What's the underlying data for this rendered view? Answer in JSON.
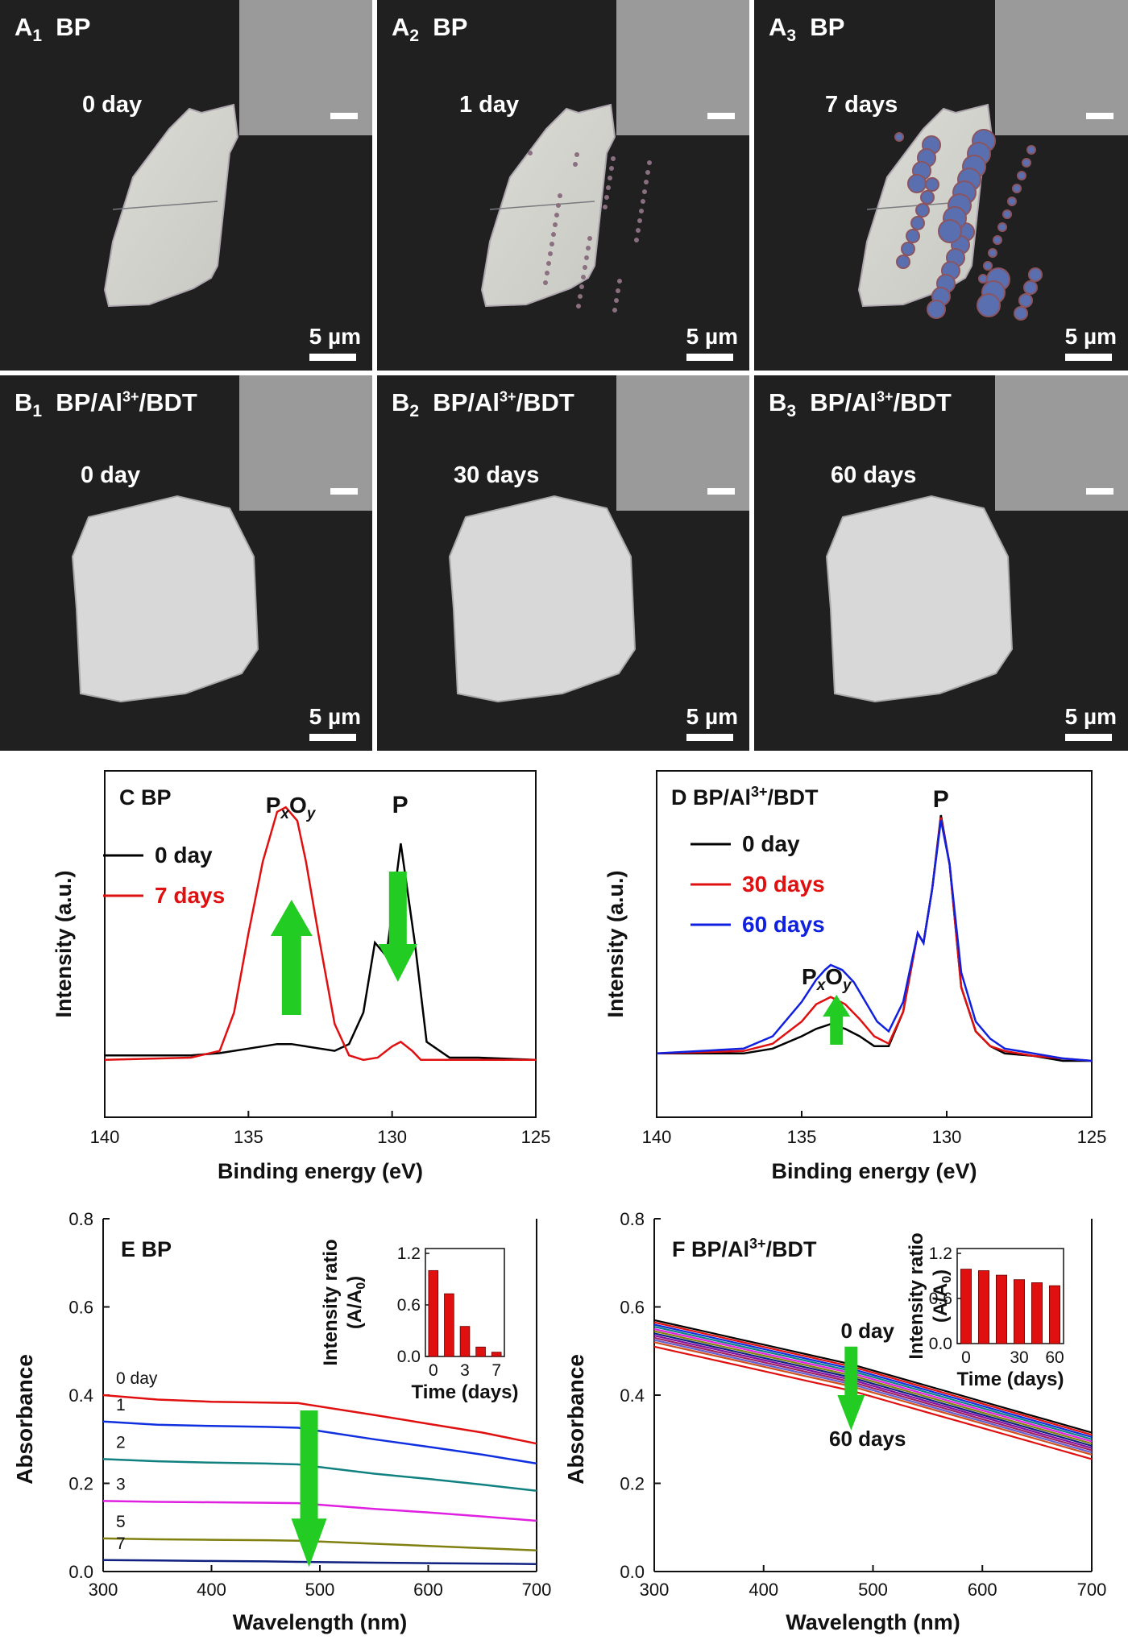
{
  "panels": [
    {
      "id": "A1",
      "letter": "A",
      "sub": "1",
      "sample": "BP",
      "time": "0 day",
      "scale": "5 µm"
    },
    {
      "id": "A2",
      "letter": "A",
      "sub": "2",
      "sample": "BP",
      "time": "1 day",
      "scale": "5 µm"
    },
    {
      "id": "A3",
      "letter": "A",
      "sub": "3",
      "sample": "BP",
      "time": "7 days",
      "scale": "5 µm"
    },
    {
      "id": "B1",
      "letter": "B",
      "sub": "1",
      "sample": "BP/Al",
      "sample_sup": "3+",
      "sample_tail": "/BDT",
      "time": "0 day",
      "scale": "5 µm"
    },
    {
      "id": "B2",
      "letter": "B",
      "sub": "2",
      "sample": "BP/Al",
      "sample_sup": "3+",
      "sample_tail": "/BDT",
      "time": "30 days",
      "scale": "5 µm"
    },
    {
      "id": "B3",
      "letter": "B",
      "sub": "3",
      "sample": "BP/Al",
      "sample_sup": "3+",
      "sample_tail": "/BDT",
      "time": "60 days",
      "scale": "5 µm"
    }
  ],
  "chart_data": [
    {
      "id": "C",
      "type": "line",
      "title": "BP",
      "xlabel": "Binding energy (eV)",
      "ylabel": "Intensity (a.u.)",
      "xlim": [
        140,
        125
      ],
      "x_reversed": true,
      "xticks": [
        140,
        135,
        130,
        125
      ],
      "peak_labels": [
        "P",
        "x",
        "O",
        "y",
        "P"
      ],
      "annotation": "peak arrows",
      "series": [
        {
          "name": "0 day",
          "color": "#000000",
          "x": [
            140,
            137,
            136,
            135,
            134,
            133.5,
            133,
            132,
            131.5,
            131,
            130.6,
            130.2,
            129.7,
            129.2,
            128.8,
            128,
            127,
            125
          ],
          "y": [
            0.06,
            0.06,
            0.07,
            0.09,
            0.11,
            0.11,
            0.1,
            0.08,
            0.11,
            0.25,
            0.56,
            0.5,
            1.0,
            0.55,
            0.12,
            0.05,
            0.05,
            0.04
          ]
        },
        {
          "name": "7 days",
          "color": "#e01010",
          "x": [
            140,
            137,
            136,
            135.5,
            135,
            134.5,
            134,
            133.7,
            133.3,
            133,
            132.5,
            132,
            131.5,
            131,
            130.5,
            130,
            129.7,
            129.3,
            129,
            128,
            127,
            125
          ],
          "y": [
            0.04,
            0.05,
            0.08,
            0.25,
            0.6,
            0.92,
            1.14,
            1.16,
            1.1,
            0.92,
            0.55,
            0.2,
            0.06,
            0.04,
            0.05,
            0.1,
            0.12,
            0.08,
            0.04,
            0.04,
            0.04,
            0.04
          ]
        }
      ]
    },
    {
      "id": "D",
      "type": "line",
      "title": "BP/Al",
      "title_sup": "3+",
      "title_tail": "/BDT",
      "xlabel": "Binding energy (eV)",
      "ylabel": "Intensity (a.u.)",
      "xlim": [
        140,
        125
      ],
      "x_reversed": true,
      "xticks": [
        140,
        135,
        130,
        125
      ],
      "peak_labels": [
        "P",
        "P",
        "x",
        "O",
        "y"
      ],
      "series": [
        {
          "name": "0 day",
          "color": "#000000",
          "x": [
            140,
            137,
            136,
            135,
            134.5,
            134,
            133.5,
            133,
            132.5,
            132,
            131.5,
            131,
            130.8,
            130.5,
            130.2,
            129.9,
            129.5,
            129,
            128.5,
            128,
            127,
            126,
            125
          ],
          "y": [
            0.03,
            0.03,
            0.05,
            0.1,
            0.13,
            0.15,
            0.13,
            0.1,
            0.06,
            0.06,
            0.2,
            0.52,
            0.48,
            0.7,
            1.0,
            0.8,
            0.3,
            0.12,
            0.06,
            0.03,
            0.02,
            0.0,
            0.0
          ]
        },
        {
          "name": "30 days",
          "color": "#e01010",
          "x": [
            140,
            137,
            136,
            135,
            134.5,
            134,
            133.5,
            133,
            132.5,
            132,
            131.5,
            131,
            130.8,
            130.5,
            130.2,
            129.9,
            129.5,
            129,
            128.5,
            128,
            127,
            126,
            125
          ],
          "y": [
            0.03,
            0.04,
            0.07,
            0.16,
            0.23,
            0.26,
            0.23,
            0.17,
            0.1,
            0.07,
            0.2,
            0.52,
            0.48,
            0.7,
            0.99,
            0.8,
            0.3,
            0.12,
            0.06,
            0.04,
            0.02,
            0.01,
            0.0
          ]
        },
        {
          "name": "60 days",
          "color": "#1020e0",
          "x": [
            140,
            137,
            136,
            135,
            134.5,
            134.2,
            134,
            133.6,
            133.2,
            132.8,
            132.4,
            132,
            131.5,
            131,
            130.8,
            130.5,
            130.2,
            129.9,
            129.5,
            129,
            128.5,
            128,
            127,
            126,
            125
          ],
          "y": [
            0.03,
            0.05,
            0.1,
            0.24,
            0.33,
            0.37,
            0.39,
            0.37,
            0.32,
            0.24,
            0.16,
            0.12,
            0.24,
            0.52,
            0.48,
            0.7,
            0.98,
            0.8,
            0.36,
            0.16,
            0.09,
            0.05,
            0.03,
            0.01,
            0.0
          ]
        }
      ]
    },
    {
      "id": "E",
      "type": "line",
      "title": "BP",
      "xlabel": "Wavelength (nm)",
      "ylabel": "Absorbance",
      "xlim": [
        300,
        700
      ],
      "ylim": [
        0,
        0.8
      ],
      "xticks": [
        300,
        400,
        500,
        600,
        700
      ],
      "yticks": [
        0.0,
        0.2,
        0.4,
        0.6,
        0.8
      ],
      "series": [
        {
          "name": "0 day",
          "color": "#e01010",
          "x": [
            300,
            350,
            400,
            450,
            480,
            550,
            600,
            650,
            700
          ],
          "y": [
            0.4,
            0.39,
            0.385,
            0.383,
            0.382,
            0.355,
            0.335,
            0.315,
            0.29
          ]
        },
        {
          "name": "1",
          "color": "#1030e0",
          "x": [
            300,
            350,
            400,
            450,
            480,
            550,
            600,
            650,
            700
          ],
          "y": [
            0.34,
            0.333,
            0.33,
            0.328,
            0.326,
            0.3,
            0.283,
            0.265,
            0.245
          ]
        },
        {
          "name": "2",
          "color": "#108080",
          "x": [
            300,
            350,
            400,
            450,
            480,
            550,
            600,
            650,
            700
          ],
          "y": [
            0.255,
            0.25,
            0.247,
            0.245,
            0.243,
            0.222,
            0.21,
            0.197,
            0.183
          ]
        },
        {
          "name": "3",
          "color": "#e020e0",
          "x": [
            300,
            350,
            400,
            450,
            480,
            550,
            600,
            650,
            700
          ],
          "y": [
            0.16,
            0.158,
            0.157,
            0.156,
            0.155,
            0.142,
            0.134,
            0.125,
            0.115
          ]
        },
        {
          "name": "5",
          "color": "#808010",
          "x": [
            300,
            350,
            400,
            450,
            480,
            550,
            600,
            650,
            700
          ],
          "y": [
            0.075,
            0.073,
            0.072,
            0.071,
            0.07,
            0.063,
            0.058,
            0.053,
            0.048
          ]
        },
        {
          "name": "7",
          "color": "#102080",
          "x": [
            300,
            350,
            400,
            450,
            480,
            550,
            600,
            650,
            700
          ],
          "y": [
            0.026,
            0.025,
            0.024,
            0.023,
            0.022,
            0.02,
            0.019,
            0.018,
            0.017
          ]
        }
      ],
      "inset": {
        "type": "bar",
        "ylabel": "Intensity ratio",
        "ylabel2": "(A/A",
        "ylabel2_sub": "0",
        "ylabel2_tail": ")",
        "xlabel": "Time (days)",
        "categories": [
          "0",
          "1",
          "3",
          "5",
          "7"
        ],
        "xticklabels": [
          "0",
          "3",
          "7"
        ],
        "values": [
          1.0,
          0.73,
          0.35,
          0.11,
          0.05
        ],
        "yticks": [
          "0.0",
          "0.6",
          "1.2"
        ],
        "ylim": [
          0,
          1.2
        ],
        "color": "#e01010"
      }
    },
    {
      "id": "F",
      "type": "line",
      "title": "BP/Al",
      "title_sup": "3+",
      "title_tail": "/BDT",
      "xlabel": "Wavelength (nm)",
      "ylabel": "Absorbance",
      "xlim": [
        300,
        700
      ],
      "ylim": [
        0,
        0.8
      ],
      "xticks": [
        300,
        400,
        500,
        600,
        700
      ],
      "yticks": [
        0.0,
        0.2,
        0.4,
        0.6,
        0.8
      ],
      "annotation_top": "0 day",
      "annotation_bottom": "60 days",
      "series_colors": [
        "#000000",
        "#e01010",
        "#1030e0",
        "#108080",
        "#e020e0",
        "#808010",
        "#102080",
        "#8010a0",
        "#a02060",
        "#6060d0",
        "#d05020",
        "#e01010"
      ],
      "series_start": [
        0.57,
        0.565,
        0.56,
        0.555,
        0.55,
        0.545,
        0.54,
        0.535,
        0.53,
        0.525,
        0.52,
        0.51
      ],
      "inset": {
        "type": "bar",
        "ylabel": "Intensity ratio",
        "ylabel2": "(A/A",
        "ylabel2_sub": "0",
        "ylabel2_tail": ")",
        "xlabel": "Time (days)",
        "categories": [
          "0",
          "10",
          "20",
          "30",
          "45",
          "60"
        ],
        "xticklabels": [
          "0",
          "30",
          "60"
        ],
        "values": [
          0.99,
          0.97,
          0.91,
          0.85,
          0.81,
          0.77
        ],
        "yticks": [
          "0.0",
          "0.6",
          "1.2"
        ],
        "ylim": [
          0,
          1.2
        ],
        "color": "#e01010"
      }
    }
  ]
}
